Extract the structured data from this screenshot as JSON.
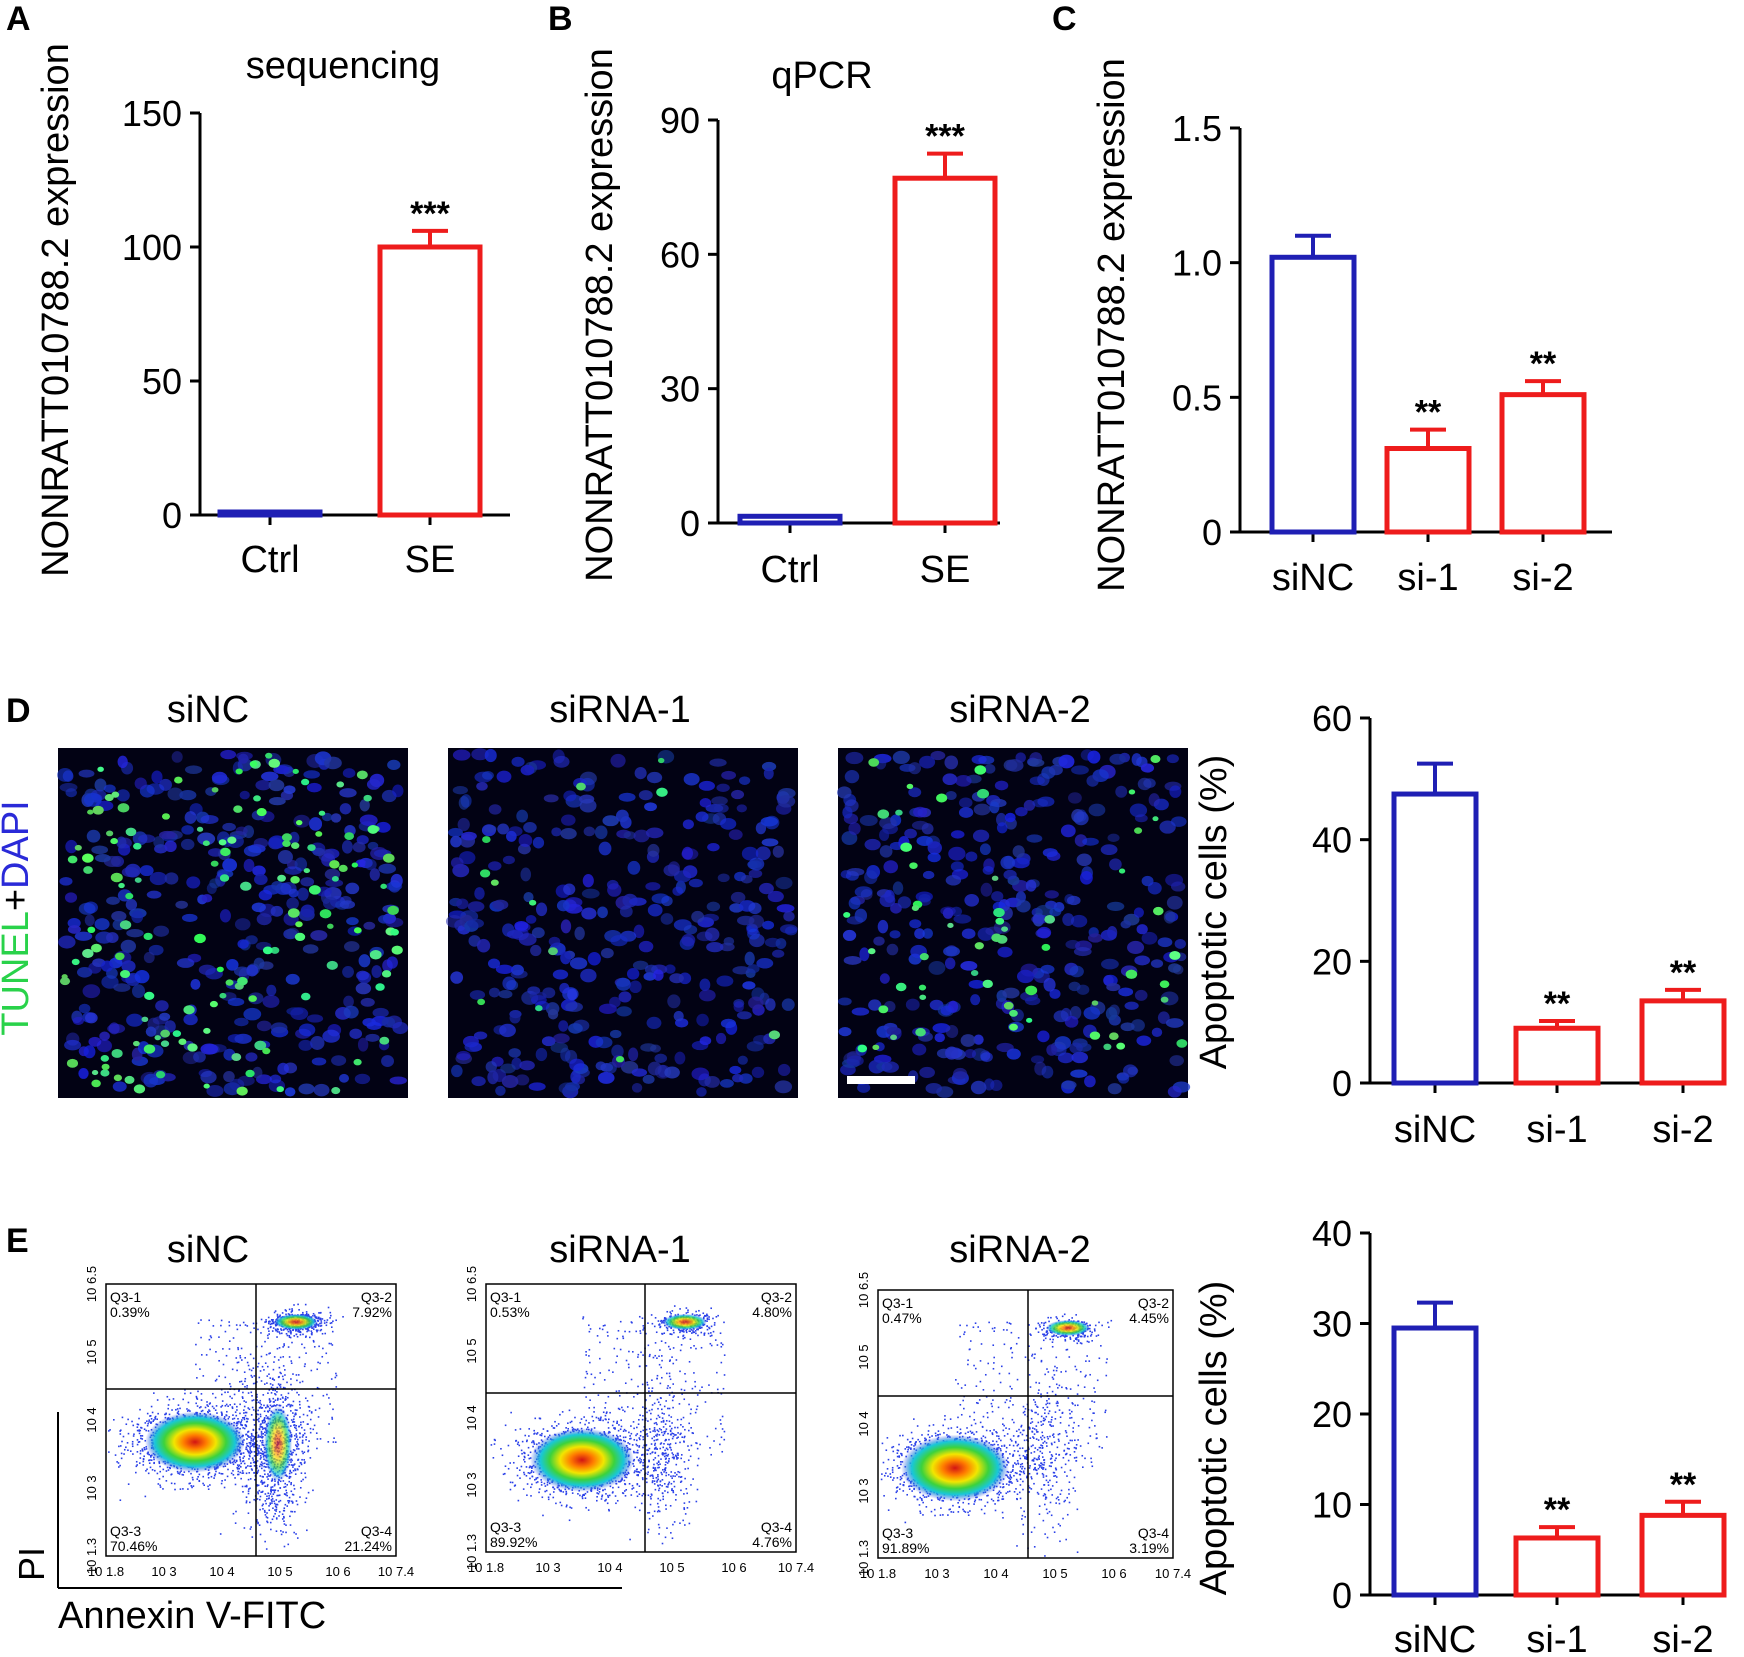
{
  "colors": {
    "blue": "#1f1fb4",
    "red": "#ee1c1c",
    "tunel": "#29d24a",
    "dapi": "#2a2ad8",
    "axis": "#000000"
  },
  "tunel_label": {
    "part1": "TUNEL",
    "plus": "+",
    "part2": "DAPI"
  },
  "panels": {
    "A": {
      "letter": "A",
      "title": "sequencing",
      "ylabel": "NONRATT010788.2 expression"
    },
    "B": {
      "letter": "B",
      "title": "qPCR",
      "ylabel": "NONRATT010788.2 expression"
    },
    "C": {
      "letter": "C",
      "ylabel": "NONRATT010788.2 expression"
    },
    "D": {
      "letter": "D",
      "image_titles": [
        "siNC",
        "siRNA-1",
        "siRNA-2"
      ],
      "ylabel": "Apoptotic cells (%)"
    },
    "E": {
      "letter": "E",
      "image_titles": [
        "siNC",
        "siRNA-1",
        "siRNA-2"
      ],
      "ylabel": "Apoptotic cells (%)",
      "flow_x_label": "Annexin V-FITC",
      "flow_y_label": "PI",
      "flow_x_ticks": [
        "10 1.8",
        "10 3",
        "10 4",
        "10 5",
        "10 6",
        "10 7.4"
      ],
      "flow_y_ticks": [
        "10 1.3",
        "10 3",
        "10 4",
        "10 5",
        "10 6.5"
      ],
      "flow_x_ticks_first": "10 1.8",
      "flow_plots": [
        {
          "q1": "Q3-1",
          "q1v": "0.39%",
          "q2": "Q3-2",
          "q2v": "7.92%",
          "q3": "Q3-3",
          "q3v": "70.46%",
          "q4": "Q3-4",
          "q4v": "21.24%"
        },
        {
          "q1": "Q3-1",
          "q1v": "0.53%",
          "q2": "Q3-2",
          "q2v": "4.80%",
          "q3": "Q3-3",
          "q3v": "89.92%",
          "q4": "Q3-4",
          "q4v": "4.76%"
        },
        {
          "q1": "Q3-1",
          "q1v": "0.47%",
          "q2": "Q3-2",
          "q2v": "4.45%",
          "q3": "Q3-3",
          "q3v": "91.89%",
          "q4": "Q3-4",
          "q4v": "3.19%"
        }
      ]
    }
  },
  "chart_data": [
    {
      "id": "A",
      "type": "bar",
      "title": "sequencing",
      "xlabel": "",
      "ylabel": "NONRATT010788.2 expression",
      "categories": [
        "Ctrl",
        "SE"
      ],
      "values": [
        1,
        100
      ],
      "errors": [
        0,
        6
      ],
      "bar_colors": [
        "blue",
        "red"
      ],
      "significance": [
        "",
        "***"
      ],
      "ylim": [
        0,
        150
      ],
      "yticks": [
        0,
        50,
        100,
        150
      ],
      "ytick_labels": [
        "0",
        "50",
        "100",
        "150"
      ]
    },
    {
      "id": "B",
      "type": "bar",
      "title": "qPCR",
      "xlabel": "",
      "ylabel": "NONRATT010788.2 expression",
      "categories": [
        "Ctrl",
        "SE"
      ],
      "values": [
        1.5,
        77
      ],
      "errors": [
        0,
        5.5
      ],
      "bar_colors": [
        "blue",
        "red"
      ],
      "significance": [
        "",
        "***"
      ],
      "ylim": [
        0,
        90
      ],
      "yticks": [
        0,
        30,
        60,
        90
      ],
      "ytick_labels": [
        "0",
        "30",
        "60",
        "90"
      ]
    },
    {
      "id": "C",
      "type": "bar",
      "title": "",
      "xlabel": "",
      "ylabel": "NONRATT010788.2 expression",
      "categories": [
        "siNC",
        "si-1",
        "si-2"
      ],
      "values": [
        1.02,
        0.31,
        0.51
      ],
      "errors": [
        0.08,
        0.07,
        0.05
      ],
      "bar_colors": [
        "blue",
        "red",
        "red"
      ],
      "significance": [
        "",
        "**",
        "**"
      ],
      "ylim": [
        0,
        1.5
      ],
      "yticks": [
        0,
        0.5,
        1.0,
        1.5
      ],
      "ytick_labels": [
        "0",
        "0.5",
        "1.0",
        "1.5"
      ]
    },
    {
      "id": "D",
      "type": "bar",
      "title": "",
      "xlabel": "",
      "ylabel": "Apoptotic cells (%)",
      "categories": [
        "siNC",
        "si-1",
        "si-2"
      ],
      "values": [
        47.5,
        9,
        13.5
      ],
      "errors": [
        5,
        1.2,
        1.8
      ],
      "bar_colors": [
        "blue",
        "red",
        "red"
      ],
      "significance": [
        "",
        "**",
        "**"
      ],
      "ylim": [
        0,
        60
      ],
      "yticks": [
        0,
        20,
        40,
        60
      ],
      "ytick_labels": [
        "0",
        "20",
        "40",
        "60"
      ]
    },
    {
      "id": "E",
      "type": "bar",
      "title": "",
      "xlabel": "",
      "ylabel": "Apoptotic cells (%)",
      "categories": [
        "siNC",
        "si-1",
        "si-2"
      ],
      "values": [
        29.5,
        6.3,
        8.8
      ],
      "errors": [
        2.8,
        1.2,
        1.5
      ],
      "bar_colors": [
        "blue",
        "red",
        "red"
      ],
      "significance": [
        "",
        "**",
        "**"
      ],
      "ylim": [
        0,
        40
      ],
      "yticks": [
        0,
        10,
        20,
        30,
        40
      ],
      "ytick_labels": [
        "0",
        "10",
        "20",
        "30",
        "40"
      ]
    }
  ]
}
